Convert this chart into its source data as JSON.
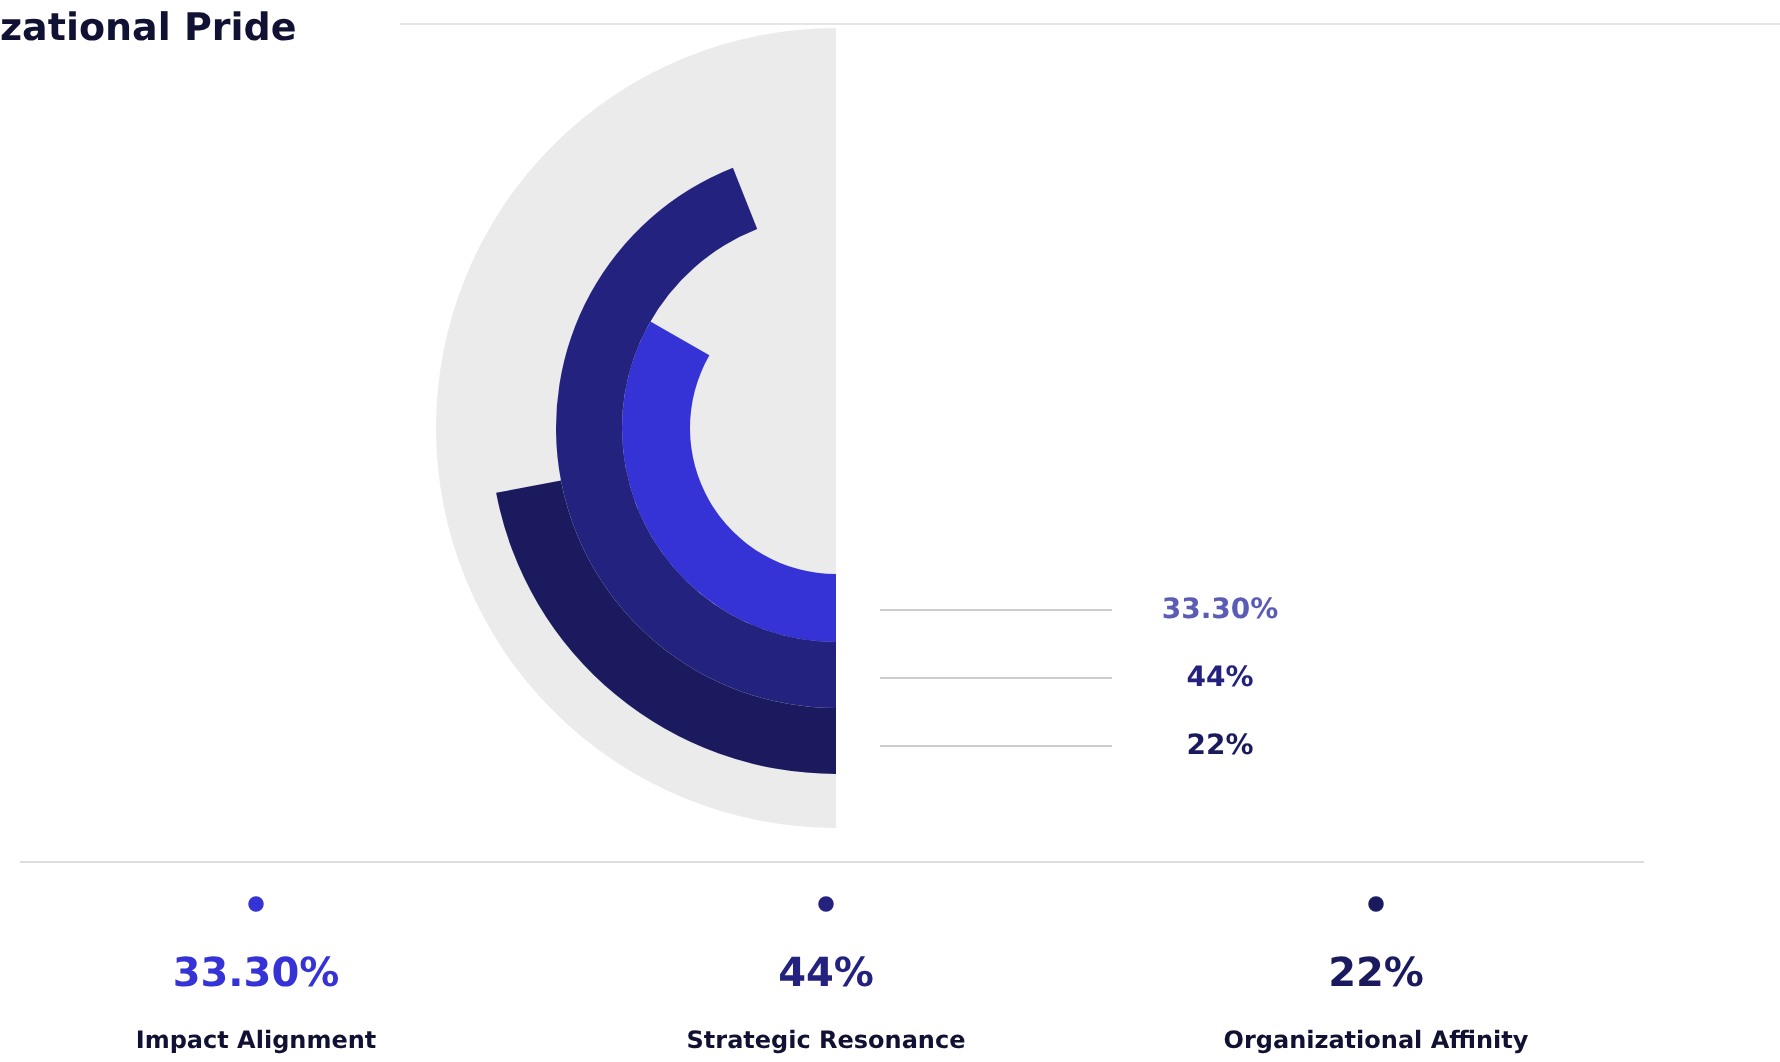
{
  "chart_data": {
    "type": "other",
    "title": "zational Pride",
    "categories": [
      "Impact Alignment",
      "Strategic Resonance",
      "Organizational Affinity"
    ],
    "values": [
      33.3,
      44,
      22
    ],
    "value_labels": [
      "33.30%",
      "44%",
      "22%"
    ],
    "colors": [
      "#3633d6",
      "#24227f",
      "#1b1a5e"
    ],
    "data_labels": true
  }
}
